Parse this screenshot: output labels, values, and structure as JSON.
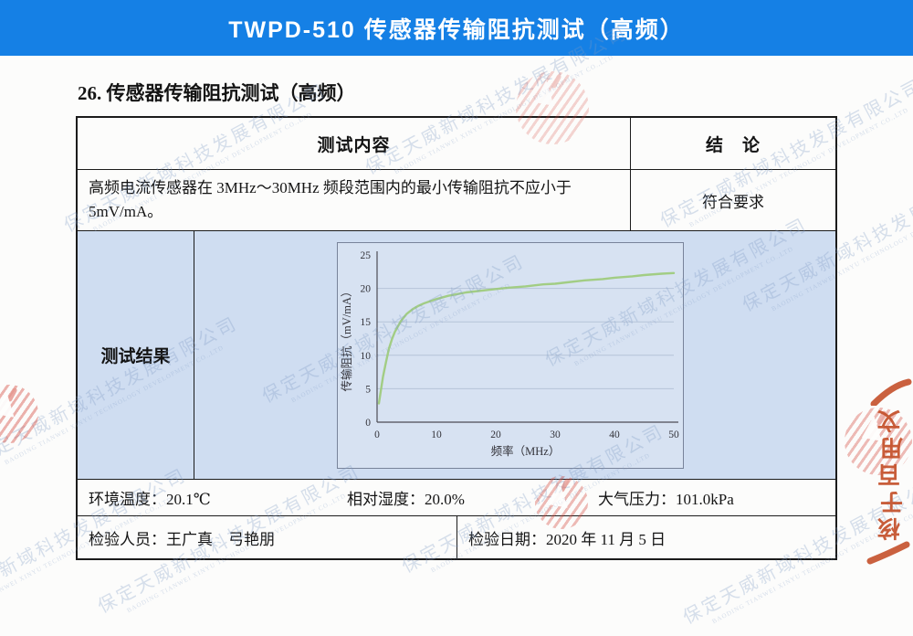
{
  "colors": {
    "header_bg": "#1580e5",
    "result_band_bg": "#cfddf1",
    "chart_bg": "#d7e2f2",
    "curve": "#9fcb7d",
    "stamp": "#c4502a",
    "table_border": "#1b1b1b"
  },
  "header": {
    "title": "TWPD-510 传感器传输阻抗测试（高频）"
  },
  "section": {
    "heading": "26. 传感器传输阻抗测试（高频）"
  },
  "table": {
    "columns": {
      "test_content": "测试内容",
      "conclusion": "结　论"
    },
    "requirement": "高频电流传感器在 3MHz～30MHz 频段范围内的最小传输阻抗不应小于5mV/mA。",
    "conclusion_value": "符合要求",
    "result_label": "测试结果",
    "environment": {
      "temperature": "环境温度：20.1℃",
      "humidity": "相对湿度：20.0%",
      "pressure": "大气压力：101.0kPa"
    },
    "inspection": {
      "personnel": "检验人员：王广真　弓艳朋",
      "date": "检验日期：2020 年 11 月 5 日"
    }
  },
  "chart_data": {
    "type": "line",
    "title": "",
    "xlabel": "频率（MHz）",
    "ylabel": "传输阻抗（mV/mA）",
    "xlim": [
      0,
      50
    ],
    "ylim": [
      0,
      25
    ],
    "x_ticks": [
      0,
      10,
      20,
      30,
      40,
      50
    ],
    "y_ticks": [
      0,
      5,
      10,
      15,
      20,
      25
    ],
    "grid": true,
    "legend": "none",
    "series": [
      {
        "name": "传输阻抗",
        "color": "#9fcb7d",
        "points": [
          [
            0.3,
            2.8
          ],
          [
            0.6,
            4.5
          ],
          [
            1,
            6.8
          ],
          [
            1.5,
            9.0
          ],
          [
            2,
            11.0
          ],
          [
            2.5,
            12.4
          ],
          [
            3,
            13.5
          ],
          [
            4,
            15.1
          ],
          [
            5,
            16.2
          ],
          [
            6,
            16.9
          ],
          [
            7,
            17.4
          ],
          [
            8,
            17.8
          ],
          [
            9,
            18.1
          ],
          [
            10,
            18.4
          ],
          [
            12,
            18.9
          ],
          [
            15,
            19.4
          ],
          [
            18,
            19.7
          ],
          [
            20,
            19.9
          ],
          [
            22,
            20.1
          ],
          [
            25,
            20.3
          ],
          [
            28,
            20.6
          ],
          [
            30,
            20.7
          ],
          [
            32,
            20.9
          ],
          [
            35,
            21.2
          ],
          [
            38,
            21.4
          ],
          [
            40,
            21.6
          ],
          [
            43,
            21.8
          ],
          [
            45,
            22.0
          ],
          [
            48,
            22.2
          ],
          [
            50,
            22.3
          ]
        ]
      }
    ]
  },
  "watermark": {
    "company_cn": "保定天威新域科技发展有限公司",
    "company_en": "BAODING TIANWEI XINYU TECHNOLOGY DEVELOPMENT CO.,LTD",
    "stamp_chars": [
      "文",
      "用",
      "百",
      "于",
      "核"
    ]
  }
}
